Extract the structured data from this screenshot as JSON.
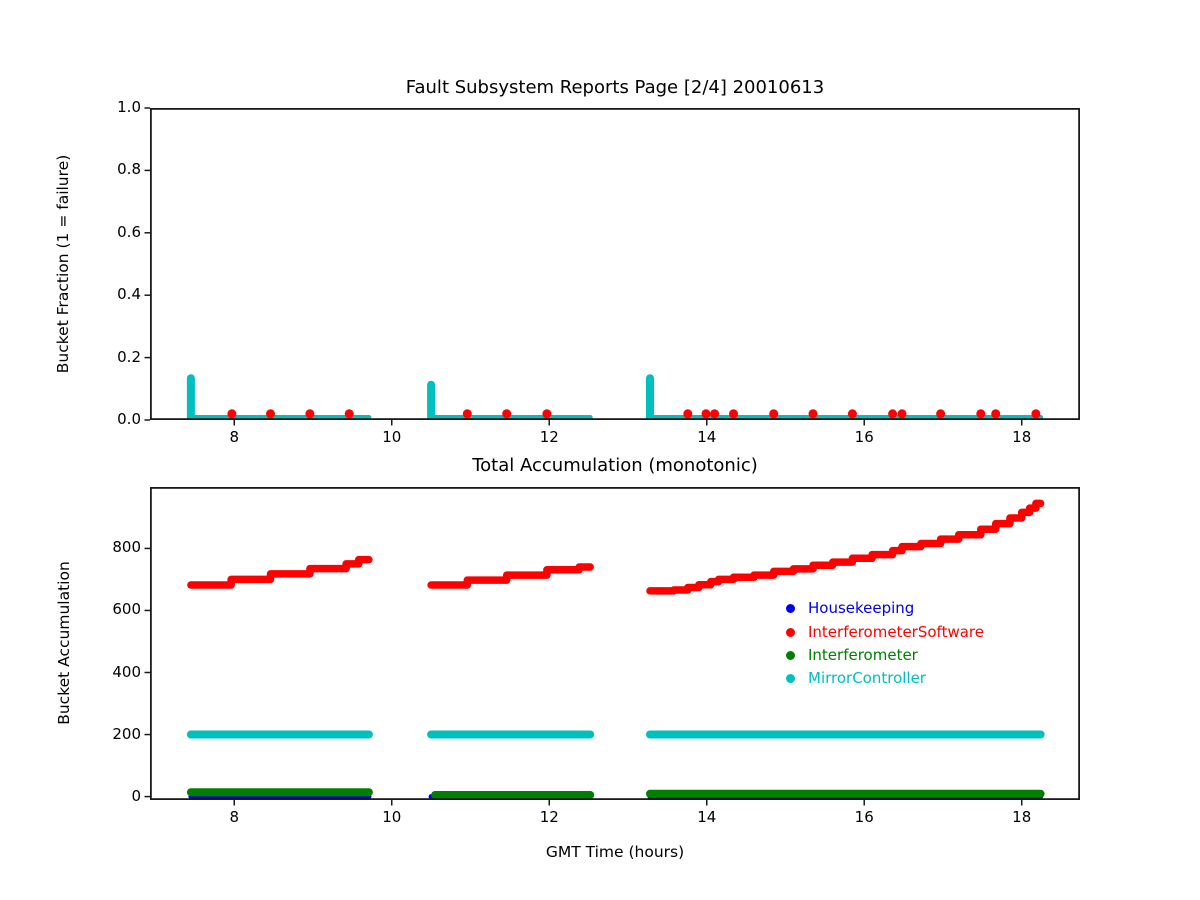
{
  "figure": {
    "background": "#ffffff",
    "title": "Fault Subsystem Reports Page [2/4] 20010613"
  },
  "chart_data": [
    {
      "type": "scatter",
      "title": "Fault Subsystem Reports Page [2/4] 20010613",
      "xlabel": "",
      "ylabel": "Bucket Fraction (1 = failure)",
      "xlim": [
        6.93,
        18.74
      ],
      "ylim": [
        0,
        1
      ],
      "grid": false,
      "xticks": {
        "values": [
          8,
          10,
          12,
          14,
          16,
          18
        ],
        "labels": [
          "8",
          "10",
          "12",
          "14",
          "16",
          "18"
        ]
      },
      "yticks": {
        "values": [
          0.0,
          0.2,
          0.4,
          0.6,
          0.8,
          1.0
        ],
        "labels": [
          "0.0",
          "0.2",
          "0.4",
          "0.6",
          "0.8",
          "1.0"
        ]
      },
      "series": [
        {
          "name": "MirrorController-spikes",
          "color": "#00bfbf",
          "style": "line",
          "linewidth": 8,
          "segments": [
            [
              [
                7.45,
                0.008
              ],
              [
                7.45,
                0.134
              ]
            ],
            [
              [
                10.5,
                0.008
              ],
              [
                10.5,
                0.113
              ]
            ],
            [
              [
                13.28,
                0.008
              ],
              [
                13.28,
                0.134
              ]
            ]
          ]
        },
        {
          "name": "MirrorController-baseline",
          "color": "#00bfbf",
          "style": "line",
          "linewidth": 5,
          "segments": [
            [
              [
                7.45,
                0.008
              ],
              [
                9.71,
                0.008
              ]
            ],
            [
              [
                10.5,
                0.008
              ],
              [
                12.52,
                0.008
              ]
            ],
            [
              [
                13.28,
                0.008
              ],
              [
                18.24,
                0.008
              ]
            ]
          ]
        },
        {
          "name": "InterferometerSoftware-failures",
          "color": "#ff0000",
          "style": "dots",
          "radius": 4.5,
          "points": [
            [
              7.97,
              0.02
            ],
            [
              8.46,
              0.02
            ],
            [
              8.96,
              0.02
            ],
            [
              9.46,
              0.02
            ],
            [
              10.96,
              0.02
            ],
            [
              11.46,
              0.02
            ],
            [
              11.97,
              0.02
            ],
            [
              13.76,
              0.02
            ],
            [
              13.99,
              0.02
            ],
            [
              14.1,
              0.02
            ],
            [
              14.34,
              0.02
            ],
            [
              14.85,
              0.02
            ],
            [
              15.35,
              0.02
            ],
            [
              15.85,
              0.02
            ],
            [
              16.36,
              0.02
            ],
            [
              16.48,
              0.02
            ],
            [
              16.97,
              0.02
            ],
            [
              17.48,
              0.02
            ],
            [
              17.67,
              0.02
            ],
            [
              18.18,
              0.02
            ]
          ]
        }
      ]
    },
    {
      "type": "line",
      "title": "Total Accumulation (monotonic)",
      "xlabel": "GMT Time (hours)",
      "ylabel": "Bucket Accumulation",
      "xlim": [
        6.93,
        18.74
      ],
      "ylim": [
        -11,
        998
      ],
      "grid": false,
      "xticks": {
        "values": [
          8,
          10,
          12,
          14,
          16,
          18
        ],
        "labels": [
          "8",
          "10",
          "12",
          "14",
          "16",
          "18"
        ]
      },
      "yticks": {
        "values": [
          0,
          200,
          400,
          600,
          800
        ],
        "labels": [
          "0",
          "200",
          "400",
          "600",
          "800"
        ]
      },
      "legend": {
        "position": "center-right",
        "items": [
          {
            "label": "Housekeeping",
            "color": "#0000ee"
          },
          {
            "label": "InterferometerSoftware",
            "color": "#ff0000"
          },
          {
            "label": "Interferometer",
            "color": "#008000"
          },
          {
            "label": "MirrorController",
            "color": "#00bfbf"
          }
        ]
      },
      "series": [
        {
          "name": "Housekeeping",
          "color": "#0000ee",
          "style": "line",
          "linewidth": 5,
          "segments": [
            [
              [
                7.45,
                0
              ],
              [
                9.71,
                0
              ]
            ],
            [
              [
                10.5,
                0
              ],
              [
                12.52,
                0
              ]
            ],
            [
              [
                13.28,
                0
              ],
              [
                18.24,
                0
              ]
            ]
          ]
        },
        {
          "name": "Interferometer",
          "color": "#008000",
          "style": "line",
          "linewidth": 8,
          "segments": [
            [
              [
                7.45,
                14
              ],
              [
                9.71,
                14
              ]
            ],
            [
              [
                10.55,
                5
              ],
              [
                12.52,
                5
              ]
            ],
            [
              [
                13.28,
                9
              ],
              [
                18.24,
                9
              ]
            ]
          ]
        },
        {
          "name": "MirrorController",
          "color": "#00bfbf",
          "style": "line",
          "linewidth": 8,
          "segments": [
            [
              [
                7.45,
                200
              ],
              [
                9.71,
                200
              ]
            ],
            [
              [
                10.5,
                200
              ],
              [
                12.52,
                200
              ]
            ],
            [
              [
                13.28,
                200
              ],
              [
                18.24,
                200
              ]
            ]
          ]
        },
        {
          "name": "InterferometerSoftware",
          "color": "#ff0000",
          "style": "line",
          "linewidth": 7.5,
          "segments": [
            [
              [
                7.45,
                682
              ],
              [
                7.96,
                682
              ],
              [
                7.96,
                700
              ],
              [
                8.46,
                700
              ],
              [
                8.46,
                718
              ],
              [
                8.96,
                718
              ],
              [
                8.96,
                735
              ],
              [
                9.42,
                735
              ],
              [
                9.42,
                750
              ],
              [
                9.58,
                750
              ],
              [
                9.58,
                764
              ],
              [
                9.71,
                764
              ]
            ],
            [
              [
                10.5,
                682
              ],
              [
                10.96,
                682
              ],
              [
                10.96,
                698
              ],
              [
                11.46,
                698
              ],
              [
                11.46,
                714
              ],
              [
                11.97,
                714
              ],
              [
                11.97,
                731
              ],
              [
                12.38,
                731
              ],
              [
                12.38,
                740
              ],
              [
                12.52,
                740
              ]
            ],
            [
              [
                13.28,
                663
              ],
              [
                13.58,
                663
              ],
              [
                13.58,
                666
              ],
              [
                13.76,
                666
              ],
              [
                13.76,
                674
              ],
              [
                13.9,
                674
              ],
              [
                13.9,
                683
              ],
              [
                14.05,
                683
              ],
              [
                14.05,
                693
              ],
              [
                14.15,
                693
              ],
              [
                14.15,
                700
              ],
              [
                14.34,
                700
              ],
              [
                14.34,
                707
              ],
              [
                14.6,
                707
              ],
              [
                14.6,
                714
              ],
              [
                14.85,
                714
              ],
              [
                14.85,
                726
              ],
              [
                15.1,
                726
              ],
              [
                15.1,
                734
              ],
              [
                15.35,
                734
              ],
              [
                15.35,
                746
              ],
              [
                15.6,
                746
              ],
              [
                15.6,
                756
              ],
              [
                15.85,
                756
              ],
              [
                15.85,
                768
              ],
              [
                16.1,
                768
              ],
              [
                16.1,
                780
              ],
              [
                16.36,
                780
              ],
              [
                16.36,
                793
              ],
              [
                16.48,
                793
              ],
              [
                16.48,
                806
              ],
              [
                16.72,
                806
              ],
              [
                16.72,
                816
              ],
              [
                16.97,
                816
              ],
              [
                16.97,
                830
              ],
              [
                17.2,
                830
              ],
              [
                17.2,
                844
              ],
              [
                17.48,
                844
              ],
              [
                17.48,
                862
              ],
              [
                17.67,
                862
              ],
              [
                17.67,
                880
              ],
              [
                17.85,
                880
              ],
              [
                17.85,
                898
              ],
              [
                18.0,
                898
              ],
              [
                18.0,
                916
              ],
              [
                18.1,
                916
              ],
              [
                18.1,
                930
              ],
              [
                18.18,
                930
              ],
              [
                18.18,
                945
              ],
              [
                18.24,
                945
              ]
            ]
          ]
        }
      ]
    }
  ]
}
